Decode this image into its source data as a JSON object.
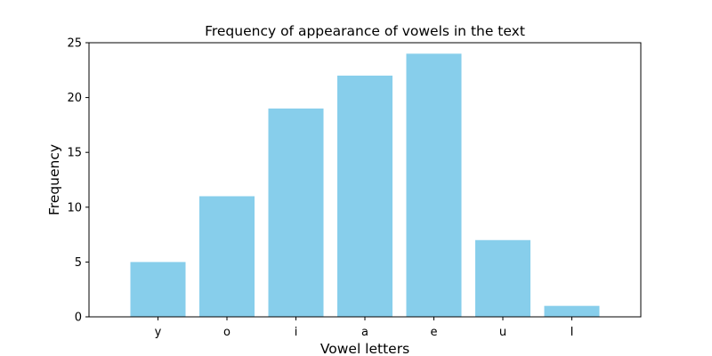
{
  "chart_data": {
    "type": "bar",
    "title": "Frequency of appearance of vowels in the text",
    "xlabel": "Vowel letters",
    "ylabel": "Frequency",
    "categories": [
      "y",
      "o",
      "i",
      "a",
      "e",
      "u",
      "I"
    ],
    "values": [
      5,
      11,
      19,
      22,
      24,
      7,
      1
    ],
    "ylim": [
      0,
      25
    ],
    "yticks": [
      "0",
      "5",
      "10",
      "15",
      "20",
      "25"
    ],
    "grid": false,
    "bar_color": "#87ceeb"
  }
}
